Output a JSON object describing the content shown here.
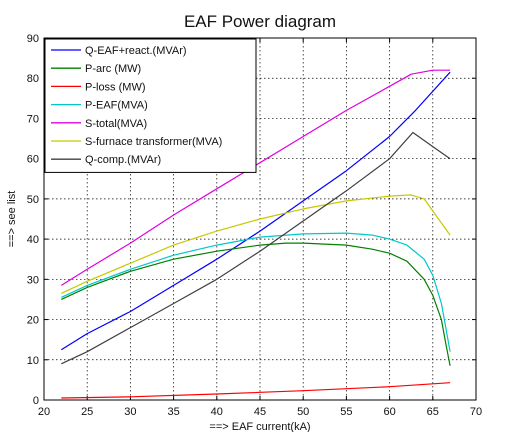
{
  "chart_data": {
    "type": "line",
    "title": "EAF Power diagram",
    "xlabel": "==> EAF current(kA)",
    "ylabel": "==> see list",
    "xlim": [
      20,
      70
    ],
    "ylim": [
      0,
      90
    ],
    "xticks": [
      20,
      25,
      30,
      35,
      40,
      45,
      50,
      55,
      60,
      65,
      70
    ],
    "yticks": [
      0,
      10,
      20,
      30,
      40,
      50,
      60,
      70,
      80,
      90
    ],
    "grid": true,
    "grid_style": "dotted",
    "legend_position": "top-left",
    "series": [
      {
        "name": "Q-EAF+react.(MVAr)",
        "color": "#0000ff",
        "x": [
          22,
          25,
          30,
          35,
          40,
          45,
          50,
          55,
          60,
          63,
          67
        ],
        "y": [
          12.5,
          16.5,
          22,
          28.5,
          35,
          42,
          49.5,
          57,
          65.5,
          72,
          81.5
        ]
      },
      {
        "name": "P-arc (MW)",
        "color": "#008000",
        "x": [
          22,
          25,
          30,
          35,
          40,
          45,
          48,
          50,
          55,
          58,
          60,
          62,
          64,
          65,
          66,
          66.5,
          67
        ],
        "y": [
          25,
          28,
          32,
          35,
          37,
          38.5,
          39,
          39,
          38.5,
          37.5,
          36.5,
          34.5,
          30,
          26,
          20,
          14,
          8.5
        ]
      },
      {
        "name": "P-loss (MW)",
        "color": "#ff0000",
        "x": [
          22,
          30,
          40,
          50,
          60,
          67
        ],
        "y": [
          0.5,
          0.8,
          1.5,
          2.3,
          3.3,
          4.3
        ]
      },
      {
        "name": "P-EAF(MVA)",
        "color": "#00c8c8",
        "x": [
          22,
          25,
          30,
          35,
          40,
          45,
          50,
          55,
          58,
          60,
          62,
          64,
          65,
          66,
          66.5,
          67
        ],
        "y": [
          25.5,
          28.5,
          32.5,
          36,
          38.5,
          40.5,
          41.3,
          41.5,
          41,
          40,
          38.5,
          35,
          31,
          24,
          18,
          12
        ]
      },
      {
        "name": "S-total(MVA)",
        "color": "#e000e0",
        "x": [
          22,
          25,
          30,
          35,
          40,
          45,
          50,
          55,
          60,
          62.5,
          65,
          67
        ],
        "y": [
          28.5,
          32.5,
          39,
          46,
          52.5,
          59,
          65.5,
          72,
          78,
          81,
          82,
          82
        ]
      },
      {
        "name": "S-furnace transformer(MVA)",
        "color": "#c8c800",
        "x": [
          22,
          25,
          30,
          35,
          40,
          45,
          50,
          55,
          60,
          62.5,
          64,
          65,
          66,
          67
        ],
        "y": [
          26.5,
          29.5,
          34,
          38.5,
          42,
          45,
          47.5,
          49.5,
          50.7,
          51,
          50,
          47,
          44,
          41
        ]
      },
      {
        "name": "Q-comp.(MVAr)",
        "color": "#404040",
        "x": [
          22,
          25,
          30,
          35,
          40,
          45,
          50,
          55,
          60,
          62.7,
          65,
          67
        ],
        "y": [
          9,
          12,
          18,
          24,
          30,
          37,
          44.5,
          52,
          60,
          66.5,
          63,
          60
        ]
      }
    ]
  }
}
